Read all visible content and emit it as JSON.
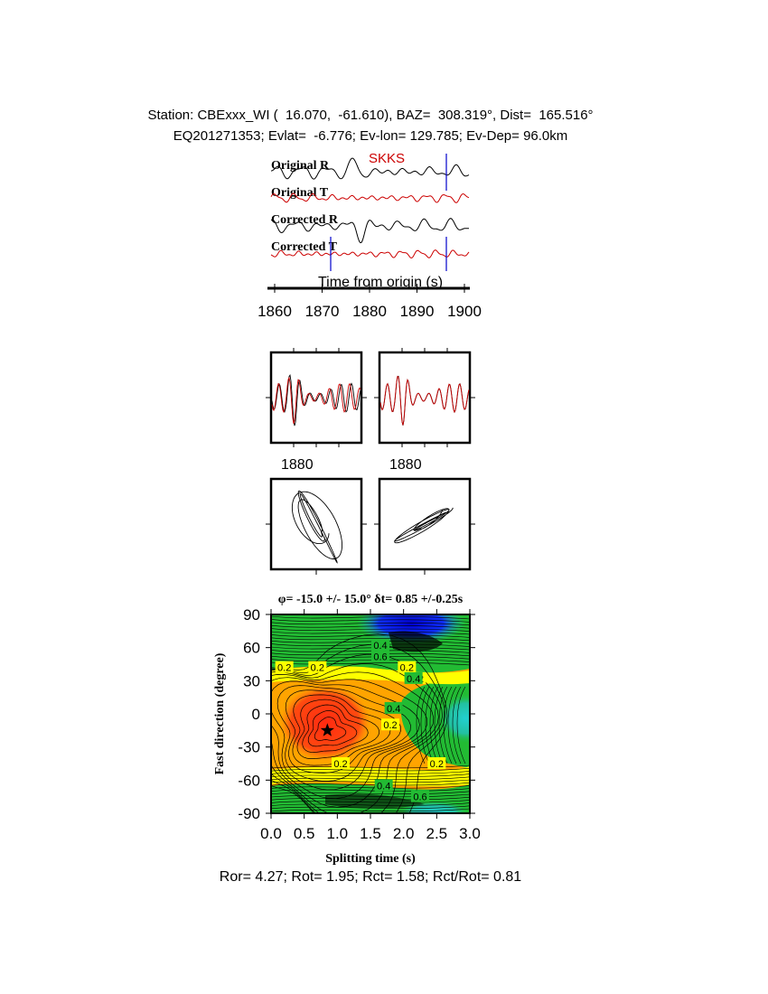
{
  "header": {
    "line1": "Station: CBExxx_WI (  16.070,  -61.610), BAZ=  308.319°, Dist=  165.516°",
    "line2": "EQ201271353; Evlat=  -6.776; Ev-lon= 129.785; Ev-Dep= 96.0km"
  },
  "seismograms": {
    "phase_label": "SKKS",
    "trace_labels": [
      "Original R",
      "Original T",
      "Corrected R",
      "Corrected T"
    ],
    "xlabel": "Time from origin (s)",
    "xticks": [
      1860,
      1870,
      1880,
      1890,
      1900
    ]
  },
  "waveform_panels": {
    "tick_label_left": "1880",
    "tick_label_right": "1880"
  },
  "grid_search": {
    "title": "φ= -15.0 +/- 15.0° δt= 0.85 +/-0.25s",
    "xlabel": "Splitting time (s)",
    "ylabel": "Fast direction (degree)",
    "xticks": [
      "0.0",
      "0.5",
      "1.0",
      "1.5",
      "2.0",
      "2.5",
      "3.0"
    ],
    "yticks": [
      "90",
      "60",
      "30",
      "0",
      "-30",
      "-60",
      "-90"
    ],
    "contour_labels": [
      "0.2",
      "0.2",
      "0.2",
      "0.2",
      "0.2",
      "0.2",
      "0.4",
      "0.4",
      "0.4",
      "0.6",
      "0.6",
      "0.4",
      "0.2"
    ]
  },
  "chart_data": {
    "type": "heatmap",
    "title": "φ= -15.0 +/- 15.0° δt= 0.85 +/-0.25s",
    "xlabel": "Splitting time (s)",
    "ylabel": "Fast direction (degree)",
    "xlim": [
      0,
      3
    ],
    "ylim": [
      -90,
      90
    ],
    "best_fit": {
      "phi": -15.0,
      "dt": 0.85
    },
    "colors": {
      "minimum": "#ff2a10",
      "low": "#ffa400",
      "mid": "#ffff00",
      "high": "#22bb33",
      "higher": "#22cccc",
      "max": "#0000cc"
    }
  },
  "footer": {
    "text": "Ror= 4.27; Rot= 1.95; Rct= 1.58; Rct/Rot= 0.81"
  }
}
